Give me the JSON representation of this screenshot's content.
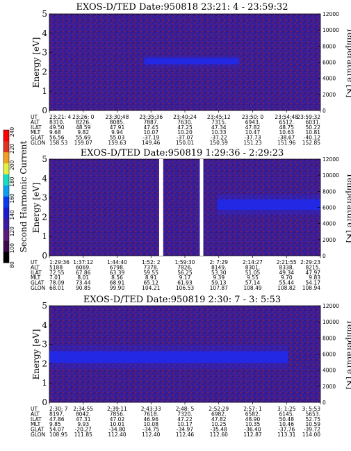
{
  "colorbar": {
    "label": "Second Harmonic Current",
    "ticks": [
      "80",
      "100",
      "120",
      "140",
      "160",
      "180",
      "200",
      "220",
      "240"
    ],
    "colors": [
      "#000000",
      "#3a0a4a",
      "#5a1a7a",
      "#3a1aa0",
      "#1a1ad0",
      "#0a3af0",
      "#0aa0f0",
      "#10e0c0",
      "#e0f040",
      "#f0a020",
      "#e03020",
      "#ff0000"
    ]
  },
  "chart_data": [
    {
      "type": "heatmap",
      "title": "EXOS-D/TED   Date:950818  23:21: 4 - 23:59:32",
      "ylabel": "Energy [eV]",
      "ylabel_right": "Temperature [K]",
      "ylim": [
        0,
        5
      ],
      "yticks": [
        "0",
        "1",
        "2",
        "3",
        "4",
        "5"
      ],
      "ylim_right": [
        0,
        12000
      ],
      "yticks_right": [
        "0",
        "2000",
        "4000",
        "6000",
        "8000",
        "10000",
        "12000"
      ],
      "band": {
        "center_ev": 2.55,
        "width_ev": 0.3,
        "x_from": 0.35,
        "x_to": 0.7
      },
      "gaps": [],
      "ephemeris": {
        "labels": [
          "UT",
          "ALT",
          "ILAT",
          "MLT",
          "GLAT",
          "GLON"
        ],
        "columns": [
          [
            "23:21: 4",
            "8310.",
            "49.50",
            "9.68",
            "56.56",
            "158.53"
          ],
          [
            "23:26: 0",
            "8226.",
            "48.59",
            "9.82",
            "55.69",
            "159.07"
          ],
          [
            "23:30:48",
            "8085.",
            "47.91",
            "9.94",
            "55.03",
            "159.63"
          ],
          [
            "23:35:36",
            "7887.",
            "47.45",
            "10.07",
            "-37.19",
            "149.46"
          ],
          [
            "23:40:24",
            "7630.",
            "47.25",
            "10.20",
            "-37.07",
            "150.01"
          ],
          [
            "23:45:12",
            "7315.",
            "47.34",
            "10.33",
            "-37.22",
            "150.59"
          ],
          [
            "23:50: 0",
            "6943.",
            "47.82",
            "10.47",
            "-37.73",
            "151.23"
          ],
          [
            "23:54:48",
            "6512.",
            "48.75",
            "10.63",
            "-38.67",
            "151.96"
          ],
          [
            "23:59:32",
            "6031.",
            "50.22",
            "10.81",
            "-40.12",
            "152.85"
          ]
        ]
      }
    },
    {
      "type": "heatmap",
      "title": "EXOS-D/TED   Date:950819   1:29:36 - 2:29:23",
      "ylabel": "Energy [eV]",
      "ylabel_right": "Temperature [K]",
      "ylim": [
        0,
        5
      ],
      "yticks": [
        "0",
        "1",
        "2",
        "3",
        "4",
        "5"
      ],
      "ylim_right": [
        0,
        12000
      ],
      "yticks_right": [
        "0",
        "2000",
        "4000",
        "6000",
        "8000",
        "10000",
        "12000"
      ],
      "band": {
        "center_ev": 2.65,
        "width_ev": 0.55,
        "x_from": 0.62,
        "x_to": 1.0
      },
      "gaps": [
        [
          0.405,
          0.42
        ],
        [
          0.555,
          0.568
        ]
      ],
      "ephemeris": {
        "labels": [
          "UT",
          "ALT",
          "ILAT",
          "MLT",
          "GLAT",
          "GLON"
        ],
        "columns": [
          [
            "1:29:36",
            "5188",
            "72.55",
            "7.01",
            "78.09",
            "68.01"
          ],
          [
            "1:37:12",
            "6069.",
            "67.86",
            "8.01",
            "73.44",
            "90.85"
          ],
          [
            "1:44:40",
            "6798.",
            "63.39",
            "8.56",
            "68.91",
            "99.90"
          ],
          [
            "1:52: 2",
            "7378.",
            "59.55",
            "8.91",
            "65.12",
            "104.21"
          ],
          [
            "1:59:30",
            "7826.",
            "56.25",
            "9.17",
            "61.93",
            "106.53"
          ],
          [
            "2: 7:29",
            "8149.",
            "53.30",
            "9.39",
            "59.13",
            "107.87"
          ],
          [
            "2:14:27",
            "8301.",
            "51.05",
            "9.55",
            "57.14",
            "108.49"
          ],
          [
            "2:21:55",
            "8338.",
            "49.34",
            "9.70",
            "55.44",
            "108.82"
          ],
          [
            "2:29:23",
            "8215.",
            "47.97",
            "9.83",
            "54.17",
            "108.94"
          ]
        ]
      }
    },
    {
      "type": "heatmap",
      "title": "EXOS-D/TED   Date:950819  2:30: 7 - 3: 5:53",
      "ylabel": "Energy [eV]",
      "ylabel_right": "Temperature [K]",
      "ylim": [
        0,
        5
      ],
      "yticks": [
        "0",
        "1",
        "2",
        "3",
        "4",
        "5"
      ],
      "ylim_right": [
        0,
        12000
      ],
      "yticks_right": [
        "0",
        "2000",
        "4000",
        "6000",
        "8000",
        "10000",
        "12000"
      ],
      "band": {
        "center_ev": 2.35,
        "width_ev": 0.6,
        "x_from": 0.0,
        "x_to": 0.88
      },
      "gaps": [],
      "ephemeris": {
        "labels": [
          "UT",
          "ALT",
          "ILAT",
          "MLT",
          "GLAT",
          "GLON"
        ],
        "columns": [
          [
            "2:30: 7",
            "8197.",
            "47.86",
            "9.85",
            "54.07",
            "108.95"
          ],
          [
            "2:34:55",
            "8042.",
            "47.31",
            "9.93",
            "-20.27",
            "111.85"
          ],
          [
            "2:39:11",
            "7856.",
            "47.02",
            "10.01",
            "-34.80",
            "112.40"
          ],
          [
            "2:43:33",
            "7618.",
            "46.96",
            "10.08",
            "-34.75",
            "112.40"
          ],
          [
            "2:48: 5",
            "7320.",
            "47.22",
            "10.17",
            "-34.97",
            "112.46"
          ],
          [
            "2:52:29",
            "6982.",
            "47.82",
            "10.25",
            "-35.48",
            "112.60"
          ],
          [
            "2:57: 1",
            "6582.",
            "48.90",
            "10.35",
            "-36.40",
            "112.87"
          ],
          [
            "3: 1:25",
            "6145.",
            "50.48",
            "10.46",
            "-37.76",
            "113.31"
          ],
          [
            "3: 5:53",
            "5653.",
            "52.75",
            "10.59",
            "-39.72",
            "114.00"
          ]
        ]
      }
    }
  ]
}
